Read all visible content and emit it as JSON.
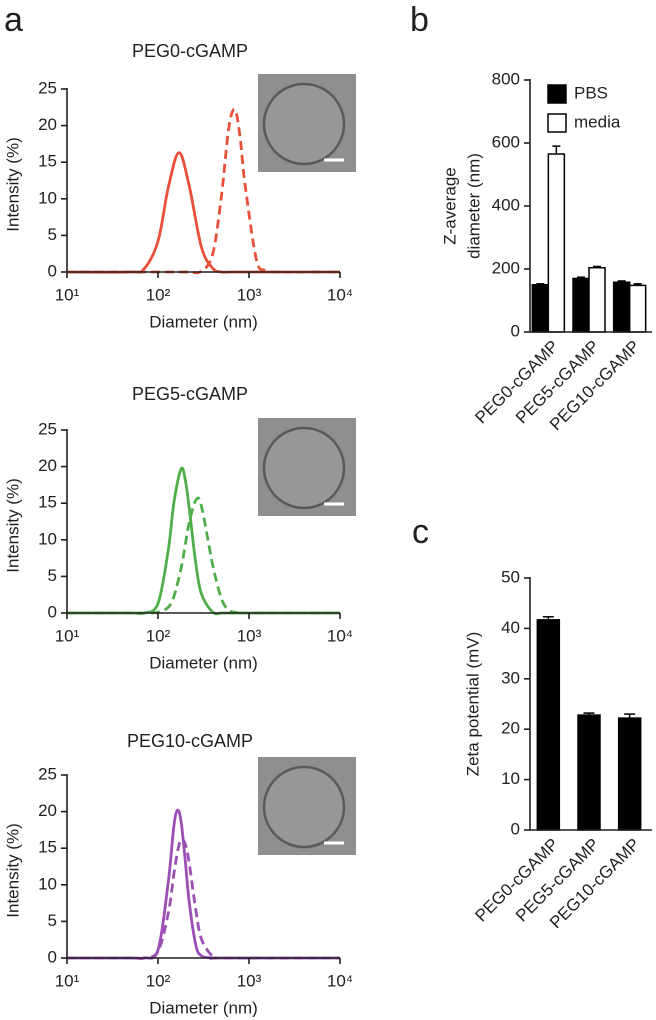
{
  "chart_data": [
    {
      "type": "line",
      "panel": "a",
      "title": "PEG0-cGAMP",
      "xlabel": "Diameter (nm)",
      "ylabel": "Intensity (%)",
      "log_x": true,
      "xlim": [
        10,
        10000
      ],
      "xticks": [
        {
          "value": 10,
          "label": "10¹"
        },
        {
          "value": 100,
          "label": "10²"
        },
        {
          "value": 1000,
          "label": "10³"
        },
        {
          "value": 10000,
          "label": "10⁴"
        }
      ],
      "ylim": [
        0,
        25
      ],
      "yticks": [
        0,
        5,
        10,
        15,
        20,
        25
      ],
      "x": [
        10,
        50,
        70,
        100,
        130,
        170,
        220,
        300,
        400,
        500,
        600,
        700,
        800,
        900,
        1200,
        1500,
        2000,
        10000
      ],
      "series": [
        {
          "color": "#e8503a",
          "dash": false,
          "values": [
            0,
            0,
            0.4,
            4.2,
            11.6,
            16.3,
            11.8,
            3.4,
            0.5,
            0,
            0,
            0,
            0,
            0,
            0,
            0,
            0,
            0
          ]
        },
        {
          "color": "#e8503a",
          "dash": true,
          "values": [
            0,
            0,
            0,
            0,
            0,
            0,
            0,
            0.1,
            2.5,
            10.6,
            19.7,
            22.2,
            18.3,
            12.2,
            1.8,
            0.2,
            0,
            0
          ]
        }
      ]
    },
    {
      "type": "line",
      "title": "PEG5-cGAMP",
      "xlabel": "Diameter (nm)",
      "ylabel": "Intensity (%)",
      "log_x": true,
      "xlim": [
        10,
        10000
      ],
      "xticks": [
        {
          "value": 10,
          "label": "10¹"
        },
        {
          "value": 100,
          "label": "10²"
        },
        {
          "value": 1000,
          "label": "10³"
        },
        {
          "value": 10000,
          "label": "10⁴"
        }
      ],
      "ylim": [
        0,
        25
      ],
      "yticks": [
        0,
        5,
        10,
        15,
        20,
        25
      ],
      "x": [
        10,
        50,
        70,
        100,
        130,
        150,
        180,
        200,
        220,
        260,
        300,
        400,
        500,
        600,
        700,
        800,
        1000,
        10000
      ],
      "series": [
        {
          "color": "#4fae4a",
          "dash": false,
          "values": [
            0,
            0,
            0,
            1.3,
            8.7,
            15.2,
            19.7,
            18.1,
            14.4,
            6.8,
            2.6,
            0.1,
            0,
            0,
            0,
            0,
            0,
            0
          ]
        },
        {
          "color": "#4fae4a",
          "dash": true,
          "values": [
            0,
            0,
            0,
            0.1,
            0.8,
            2.3,
            6.2,
            9.4,
            12.3,
            15.4,
            14.6,
            6.5,
            1.9,
            0.4,
            0.1,
            0,
            0,
            0
          ]
        }
      ]
    },
    {
      "type": "line",
      "title": "PEG10-cGAMP",
      "xlabel": "Diameter (nm)",
      "ylabel": "Intensity (%)",
      "log_x": true,
      "xlim": [
        10,
        10000
      ],
      "xticks": [
        {
          "value": 10,
          "label": "10¹"
        },
        {
          "value": 100,
          "label": "10²"
        },
        {
          "value": 1000,
          "label": "10³"
        },
        {
          "value": 10000,
          "label": "10⁴"
        }
      ],
      "ylim": [
        0,
        25
      ],
      "yticks": [
        0,
        5,
        10,
        15,
        20,
        25
      ],
      "x": [
        10,
        50,
        70,
        100,
        130,
        150,
        165,
        180,
        200,
        220,
        260,
        300,
        400,
        500,
        10000
      ],
      "series": [
        {
          "color": "#9b4fb5",
          "dash": false,
          "values": [
            0,
            0,
            0,
            1.1,
            10.5,
            18.2,
            20.2,
            18.5,
            13.1,
            7.7,
            1.8,
            0.3,
            0,
            0,
            0
          ]
        },
        {
          "color": "#9b4fb5",
          "dash": true,
          "values": [
            0,
            0,
            0,
            0.9,
            6.2,
            11.6,
            14.7,
            16.2,
            15.5,
            13.0,
            6.6,
            2.6,
            0.2,
            0,
            0
          ]
        }
      ]
    },
    {
      "type": "bar",
      "panel": "b",
      "ylabel": [
        "Z-average",
        "diameter (nm)"
      ],
      "categories": [
        "PEG0-cGAMP",
        "PEG5-cGAMP",
        "PEG10-cGAMP"
      ],
      "ylim": [
        0,
        800
      ],
      "yticks": [
        0,
        200,
        400,
        600,
        800
      ],
      "series": [
        {
          "name": "PBS",
          "color": "#000000",
          "values": [
            150,
            170,
            158
          ],
          "errors": [
            3,
            4,
            4
          ]
        },
        {
          "name": "media",
          "color": "#ffffff",
          "values": [
            565,
            204,
            148
          ],
          "errors": [
            25,
            4,
            5
          ]
        }
      ]
    },
    {
      "type": "bar",
      "panel": "c",
      "ylabel": [
        "Zeta potential (mV)"
      ],
      "categories": [
        "PEG0-cGAMP",
        "PEG5-cGAMP",
        "PEG10-cGAMP"
      ],
      "ylim": [
        0,
        50
      ],
      "yticks": [
        0,
        10,
        20,
        30,
        40,
        50
      ],
      "series": [
        {
          "color": "#000000",
          "values": [
            41.7,
            22.8,
            22.2
          ],
          "errors": [
            0.6,
            0.4,
            0.8
          ]
        }
      ]
    }
  ]
}
